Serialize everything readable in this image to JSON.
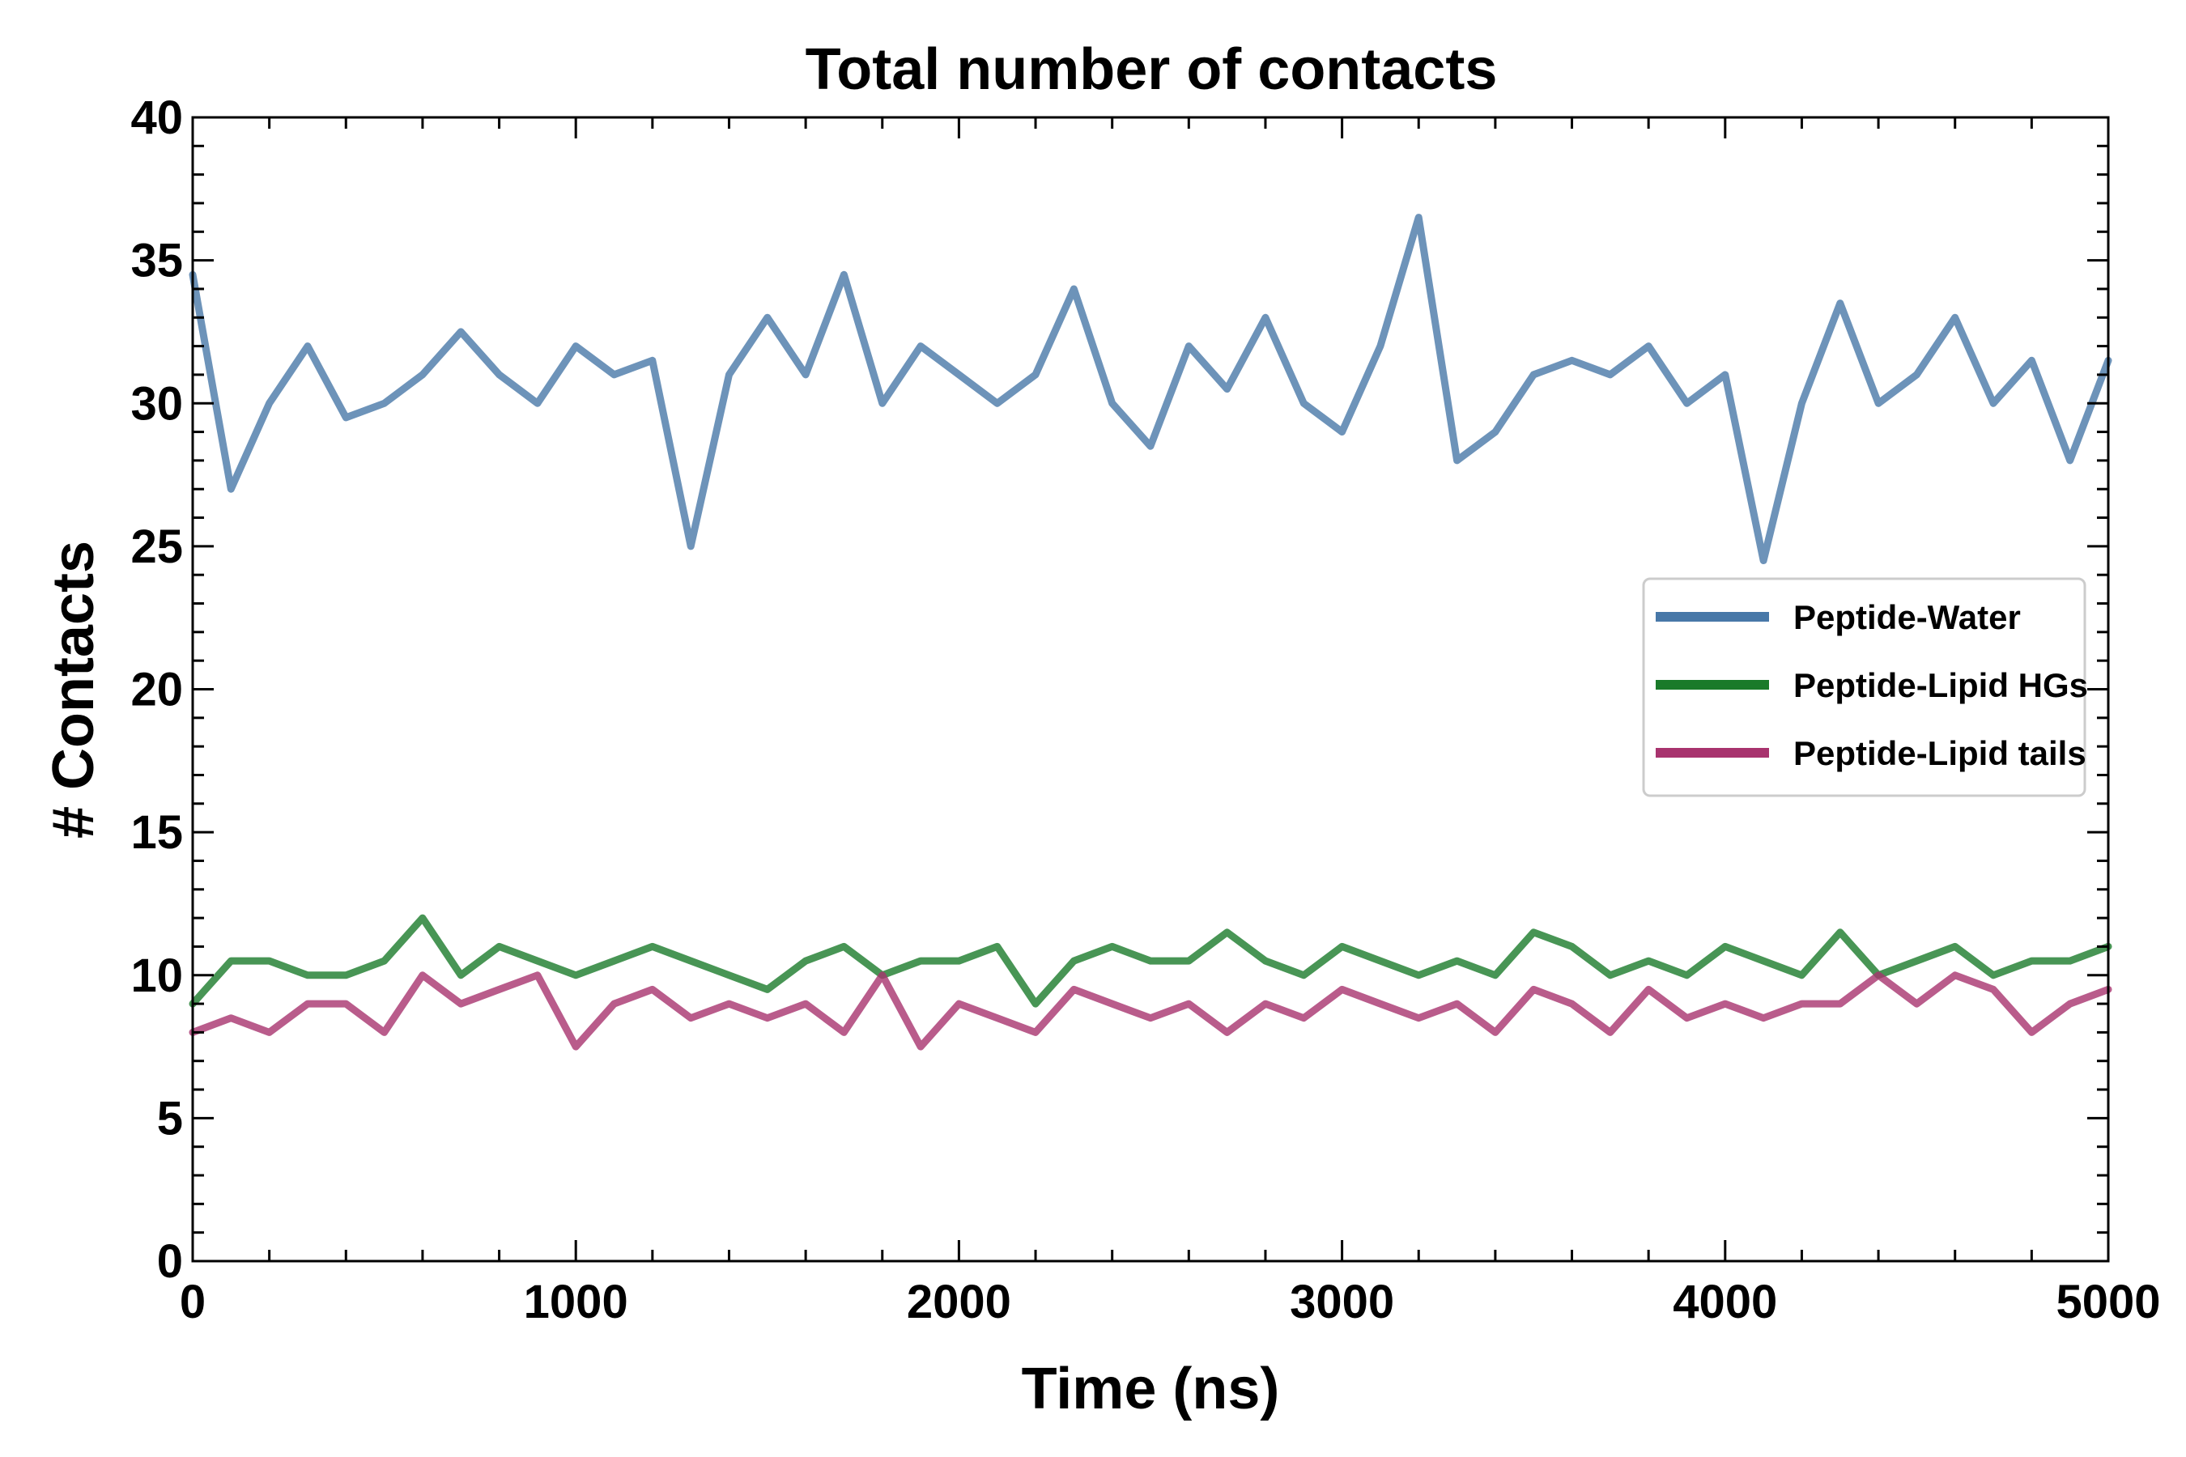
{
  "chart_data": {
    "type": "line",
    "title": "Total number of contacts",
    "xlabel": "Time (ns)",
    "ylabel": "# Contacts",
    "xlim": [
      0,
      5000
    ],
    "ylim": [
      0,
      40
    ],
    "x_ticks": [
      0,
      1000,
      2000,
      3000,
      4000,
      5000
    ],
    "y_ticks": [
      0,
      5,
      10,
      15,
      20,
      25,
      30,
      35,
      40
    ],
    "x_minor_step": 200,
    "y_minor_step": 1,
    "grid": false,
    "legend_position": "center-right",
    "x": [
      0,
      100,
      200,
      300,
      400,
      500,
      600,
      700,
      800,
      900,
      1000,
      1100,
      1200,
      1300,
      1400,
      1500,
      1600,
      1700,
      1800,
      1900,
      2000,
      2100,
      2200,
      2300,
      2400,
      2500,
      2600,
      2700,
      2800,
      2900,
      3000,
      3100,
      3200,
      3300,
      3400,
      3500,
      3600,
      3700,
      3800,
      3900,
      4000,
      4100,
      4200,
      4300,
      4400,
      4500,
      4600,
      4700,
      4800,
      4900,
      5000
    ],
    "series": [
      {
        "name": "Peptide-Water",
        "color": "#4878a8",
        "values": [
          34.5,
          27,
          30,
          32,
          29.5,
          30,
          31,
          32.5,
          31,
          30,
          32,
          31,
          31.5,
          25,
          31,
          33,
          31,
          34.5,
          30,
          32,
          31,
          30,
          31,
          34,
          30,
          28.5,
          32,
          30.5,
          33,
          30,
          29,
          32,
          36.5,
          28,
          29,
          31,
          31.5,
          31,
          32,
          30,
          31,
          24.5,
          30,
          33.5,
          30,
          31,
          33,
          30,
          31.5,
          28,
          31.5
        ]
      },
      {
        "name": "Peptide-Lipid HGs",
        "color": "#1a7a2a",
        "values": [
          9,
          10.5,
          10.5,
          10,
          10,
          10.5,
          12,
          10,
          11,
          10.5,
          10,
          10.5,
          11,
          10.5,
          10,
          9.5,
          10.5,
          11,
          10,
          10.5,
          10.5,
          11,
          9,
          10.5,
          11,
          10.5,
          10.5,
          11.5,
          10.5,
          10,
          11,
          10.5,
          10,
          10.5,
          10,
          11.5,
          11,
          10,
          10.5,
          10,
          11,
          10.5,
          10,
          11.5,
          10,
          10.5,
          11,
          10,
          10.5,
          10.5,
          11
        ]
      },
      {
        "name": "Peptide-Lipid tails",
        "color": "#a8336e",
        "values": [
          8,
          8.5,
          8,
          9,
          9,
          8,
          10,
          9,
          9.5,
          10,
          7.5,
          9,
          9.5,
          8.5,
          9,
          8.5,
          9,
          8,
          10,
          7.5,
          9,
          8.5,
          8,
          9.5,
          9,
          8.5,
          9,
          8,
          9,
          8.5,
          9.5,
          9,
          8.5,
          9,
          8,
          9.5,
          9,
          8,
          9.5,
          8.5,
          9,
          8.5,
          9,
          9,
          10,
          9,
          10,
          9.5,
          8,
          9,
          9.5
        ]
      }
    ]
  }
}
